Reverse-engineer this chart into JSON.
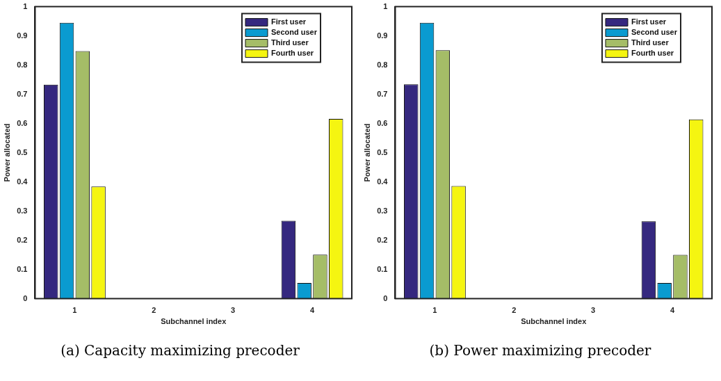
{
  "chart_data": [
    {
      "type": "bar",
      "annotations": [
        "(a) Capacity maximizing precoder"
      ],
      "xlabel": "Subchannel index",
      "ylabel": "Power allocated",
      "categories": [
        "1",
        "2",
        "3",
        "4"
      ],
      "series": [
        {
          "name": "First user",
          "color": "#35287f",
          "values": [
            0.733,
            0,
            0,
            0.267
          ]
        },
        {
          "name": "Second user",
          "color": "#0a9bd0",
          "values": [
            0.945,
            0,
            0,
            0.054
          ]
        },
        {
          "name": "Third user",
          "color": "#a5bd67",
          "values": [
            0.848,
            0,
            0,
            0.151
          ]
        },
        {
          "name": "Fourth user",
          "color": "#f5f511",
          "values": [
            0.384,
            0,
            0,
            0.616
          ]
        }
      ],
      "ylim": [
        0,
        1
      ],
      "yticks": [
        0,
        0.1,
        0.2,
        0.3,
        0.4,
        0.5,
        0.6,
        0.7,
        0.8,
        0.9,
        1
      ],
      "grid": false,
      "legend": "top right"
    },
    {
      "type": "bar",
      "annotations": [
        "(b) Power maximizing precoder"
      ],
      "xlabel": "Subchannel index",
      "ylabel": "Power allocated",
      "categories": [
        "1",
        "2",
        "3",
        "4"
      ],
      "series": [
        {
          "name": "First user",
          "color": "#35287f",
          "values": [
            0.734,
            0,
            0,
            0.265
          ]
        },
        {
          "name": "Second user",
          "color": "#0a9bd0",
          "values": [
            0.945,
            0,
            0,
            0.054
          ]
        },
        {
          "name": "Third user",
          "color": "#a5bd67",
          "values": [
            0.851,
            0,
            0,
            0.15
          ]
        },
        {
          "name": "Fourth user",
          "color": "#f5f511",
          "values": [
            0.386,
            0,
            0,
            0.614
          ]
        }
      ],
      "ylim": [
        0,
        1
      ],
      "yticks": [
        0,
        0.1,
        0.2,
        0.3,
        0.4,
        0.5,
        0.6,
        0.7,
        0.8,
        0.9,
        1
      ],
      "grid": false,
      "legend": "top right"
    }
  ]
}
